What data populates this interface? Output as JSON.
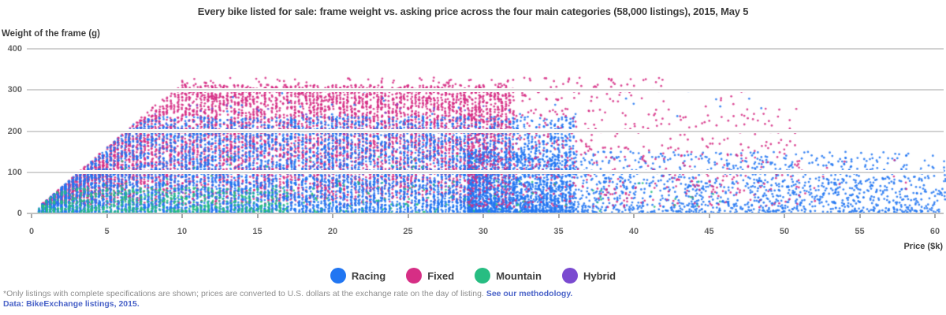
{
  "title": "Every bike listed for sale: frame weight vs. asking price across the four main categories (58,000 listings), 2015, May 5",
  "footnote": {
    "note": "*Only listings with complete specifications are shown; prices are converted to U.S. dollars at the exchange rate on the day of listing.",
    "link_label": "See our methodology.",
    "source": "Data: BikeExchange listings, 2015."
  },
  "legend": {
    "items": [
      {
        "label": "Racing",
        "color": "#2176f2"
      },
      {
        "label": "Fixed",
        "color": "#d62e85"
      },
      {
        "label": "Mountain",
        "color": "#27bd82"
      },
      {
        "label": "Hybrid",
        "color": "#7a4ad0"
      }
    ]
  },
  "chart_data": {
    "type": "scatter",
    "xlabel": "Price ($k)",
    "ylabel": "Weight of the frame (g)",
    "xlim": [
      0,
      60
    ],
    "ylim": [
      0,
      400
    ],
    "xticks": [
      0,
      5,
      10,
      15,
      20,
      25,
      30,
      35,
      40,
      45,
      50,
      55,
      60
    ],
    "yticks": [
      0,
      100,
      200,
      300,
      400
    ],
    "grid": "horizontal-over-points",
    "legend_position": "bottom-center",
    "series_colors": {
      "Racing": "#2176f2",
      "Fixed": "#d62e85",
      "Mountain": "#27bd82",
      "Hybrid": "#7a4ad0"
    },
    "generator": {
      "seed": 1337,
      "point_radius": 1.4,
      "point_alpha": 0.85,
      "wedge_slope": 32,
      "clusters": [
        {
          "series": "Fixed",
          "color": "#d62e85",
          "n": 6500,
          "x": [
            0.6,
            32
          ],
          "xk": 1,
          "y": [
            20,
            312
          ],
          "yk": 0.78,
          "wedge": true,
          "stripe": true
        },
        {
          "series": "Hybrid",
          "color": "#7a4ad0",
          "n": 180,
          "x": [
            0.8,
            30
          ],
          "xk": 1,
          "y": [
            2,
            265
          ],
          "yk": 1.1,
          "wedge": true,
          "stripe": true
        },
        {
          "series": "Racing",
          "color": "#2176f2",
          "n": 6500,
          "x": [
            0.6,
            36
          ],
          "xk": 1.05,
          "y": [
            2,
            235
          ],
          "yk": 1.45,
          "wedge": true,
          "stripe": true
        },
        {
          "series": "Mountain",
          "color": "#27bd82",
          "n": 600,
          "x": [
            0.6,
            17
          ],
          "xk": 1.1,
          "y": [
            2,
            62
          ],
          "yk": 1.5,
          "wedge": true,
          "stripe": true
        },
        {
          "series": "Mountain",
          "color": "#27bd82",
          "n": 100,
          "x": [
            2,
            30
          ],
          "xk": 1,
          "y": [
            2,
            140
          ],
          "yk": 1.6,
          "wedge": true
        },
        {
          "series": "Racing",
          "color": "#2176f2",
          "n": 2200,
          "x": [
            29,
            62
          ],
          "xk": 1.9,
          "y": [
            2,
            150
          ],
          "yk": 1.5
        },
        {
          "series": "Fixed",
          "color": "#d62e85",
          "n": 650,
          "x": [
            29,
            51
          ],
          "xk": 1.7,
          "y": [
            15,
            255
          ],
          "yk": 1.1
        },
        {
          "series": "Fixed",
          "color": "#d62e85",
          "n": 230,
          "x": [
            10,
            42
          ],
          "xk": 1.15,
          "y": [
            272,
            330
          ],
          "yk": 1
        },
        {
          "series": "Racing",
          "color": "#2176f2",
          "n": 35,
          "x": [
            12,
            52
          ],
          "xk": 1.2,
          "y": [
            235,
            300
          ],
          "yk": 1
        },
        {
          "series": "Mountain",
          "color": "#27bd82",
          "n": 70,
          "x": [
            18,
            46
          ],
          "xk": 1.3,
          "y": [
            2,
            80
          ],
          "yk": 1.3
        },
        {
          "series": "Racing",
          "color": "#2176f2",
          "n": 140,
          "x": [
            48,
            59.5
          ],
          "xk": 1,
          "y": [
            4,
            90
          ],
          "yk": 1.3
        },
        {
          "series": "Fixed",
          "color": "#d62e85",
          "n": 28,
          "x": [
            44,
            59
          ],
          "xk": 1,
          "y": [
            25,
            130
          ],
          "yk": 1
        },
        {
          "series": "Fixed",
          "color": "#d62e85",
          "n": 10,
          "x": [
            40,
            48
          ],
          "xk": 1,
          "y": [
            230,
            300
          ],
          "yk": 1
        }
      ]
    }
  }
}
